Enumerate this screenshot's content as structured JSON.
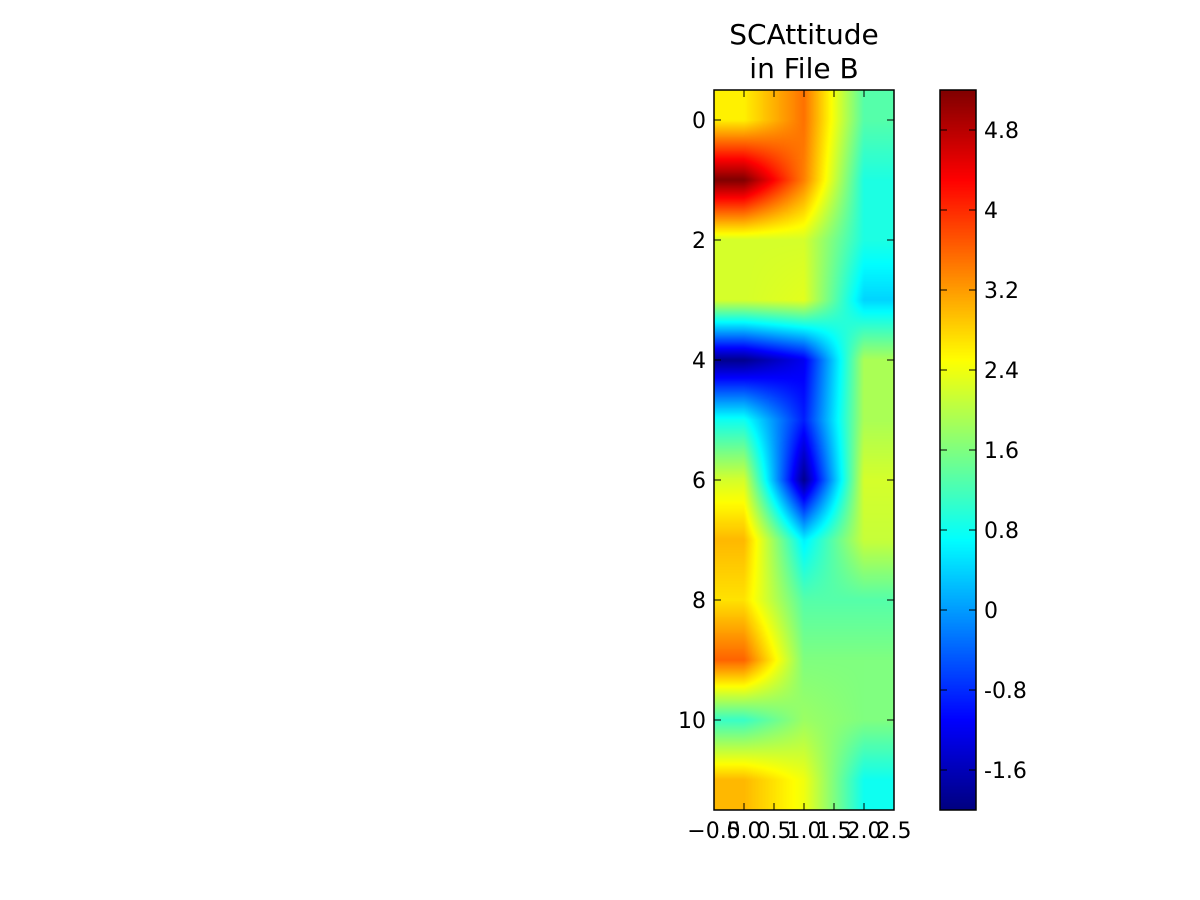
{
  "chart_data": {
    "type": "heatmap",
    "title": "SCAttitude\nin File B",
    "xlabel": "",
    "ylabel": "",
    "x_ticks": [
      "−0.5",
      "0.0",
      "0.5",
      "1.0",
      "1.5",
      "2.0",
      "2.5"
    ],
    "y_ticks": [
      "0",
      "2",
      "4",
      "6",
      "8",
      "10"
    ],
    "xlim": [
      -0.5,
      2.5
    ],
    "ylim": [
      11.5,
      -0.5
    ],
    "colormap": "jet",
    "colorbar": {
      "vmin": -2.0,
      "vmax": 5.2,
      "ticks": [
        "4.8",
        "4",
        "3.2",
        "2.4",
        "1.6",
        "0.8",
        "0",
        "-0.8",
        "-1.6"
      ]
    },
    "grid": false,
    "rows": 12,
    "cols": 3,
    "values": [
      [
        2.6,
        3.5,
        1.3
      ],
      [
        5.2,
        3.4,
        0.9
      ],
      [
        2.2,
        2.2,
        0.9
      ],
      [
        2.2,
        2.3,
        0.4
      ],
      [
        -1.9,
        -1.2,
        1.9
      ],
      [
        0.8,
        -0.9,
        1.9
      ],
      [
        2.2,
        -1.9,
        2.2
      ],
      [
        3.0,
        0.6,
        2.1
      ],
      [
        2.7,
        1.3,
        1.3
      ],
      [
        3.6,
        1.6,
        1.6
      ],
      [
        1.1,
        1.8,
        1.6
      ],
      [
        3.0,
        2.4,
        0.8
      ]
    ]
  }
}
